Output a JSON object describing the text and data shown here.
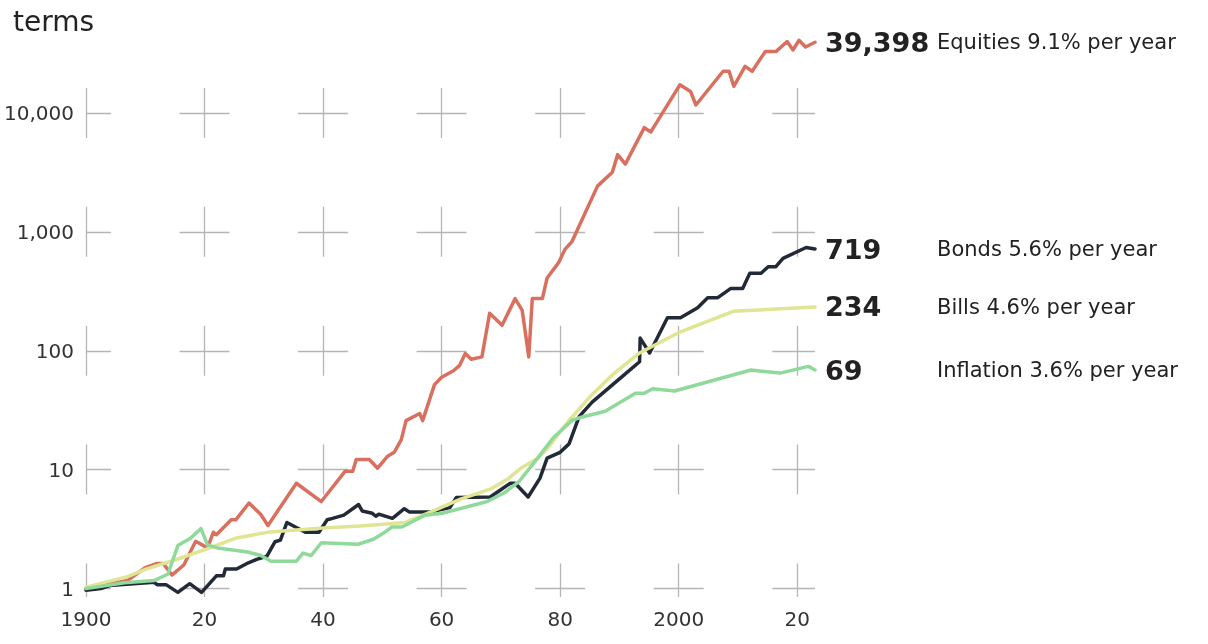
{
  "chart_data": {
    "type": "line",
    "title": "terms",
    "log": "y",
    "grid": true,
    "legend": false,
    "marker": "none",
    "line_style": "solid",
    "xlim": [
      1900,
      2023
    ],
    "xticks": [
      1900,
      {
        "value": 1920,
        "label": "20"
      },
      {
        "value": 1940,
        "label": "40"
      },
      {
        "value": 1960,
        "label": "60"
      },
      {
        "value": 1980,
        "label": "80"
      },
      2000,
      {
        "value": 2020,
        "label": "20"
      }
    ],
    "ylim": [
      0.85,
      50000
    ],
    "yticks": [
      1,
      10,
      100,
      {
        "value": 1000,
        "label": "1,000"
      },
      {
        "value": 10000,
        "label": "10,000"
      }
    ],
    "series": [
      {
        "name": "Equities 9.1% per year",
        "color": "#d9705f",
        "x": [
          1900,
          1907,
          1910,
          1912,
          1913,
          1914.5,
          1916.5,
          1918.5,
          1920.5,
          1921.5,
          1922,
          1924.5,
          1925.3,
          1927.5,
          1929.5,
          1930.7,
          1935.5,
          1939.7,
          1943.7,
          1945,
          1945.6,
          1947.8,
          1949.2,
          1950.9,
          1952,
          1953.2,
          1954,
          1956.3,
          1956.8,
          1958.8,
          1960,
          1962,
          1963,
          1964,
          1965,
          1966.8,
          1968.1,
          1970.2,
          1972.4,
          1973.6,
          1974.7,
          1975.3,
          1977,
          1977.8,
          1979.8,
          1980.8,
          1982,
          1986.3,
          1988.8,
          1989.7,
          1991,
          1994.2,
          1995.3,
          2000.2,
          2002,
          2002.9,
          2007.5,
          2008.5,
          2009.3,
          2011.2,
          2012.4,
          2014.6,
          2016.4,
          2018.3,
          2019.3,
          2020.3,
          2021.4,
          2023
        ],
        "values": [
          1.0,
          1.17,
          1.5,
          1.63,
          1.63,
          1.3,
          1.58,
          2.5,
          2.2,
          2.98,
          2.84,
          3.8,
          3.8,
          5.25,
          4.2,
          3.4,
          7.7,
          5.4,
          9.7,
          9.7,
          12.2,
          12.2,
          10.3,
          13,
          14,
          17.9,
          25.9,
          29.7,
          25.9,
          52,
          60,
          68,
          75,
          95,
          85,
          89,
          207,
          164,
          275,
          219,
          89,
          275,
          275,
          410,
          558,
          714,
          830,
          2430,
          3180,
          4470,
          3720,
          7540,
          6940,
          17300,
          15200,
          11700,
          22500,
          22500,
          16800,
          24700,
          22500,
          32900,
          32900,
          40000,
          34000,
          41000,
          36000,
          39398
        ],
        "value_labels": [
          null,
          null,
          null,
          null,
          null,
          null,
          null,
          null,
          null,
          null,
          null,
          null,
          null,
          null,
          null,
          null,
          null,
          null,
          null,
          null,
          null,
          null,
          null,
          null,
          null,
          null,
          null,
          null,
          null,
          null,
          null,
          null,
          null,
          null,
          null,
          null,
          null,
          null,
          null,
          null,
          null,
          null,
          null,
          null,
          null,
          null,
          null,
          null,
          null,
          null,
          null,
          null,
          null,
          null,
          null,
          null,
          null,
          null,
          null,
          null,
          null,
          null,
          null,
          null,
          null,
          null,
          null,
          "39,398"
        ]
      },
      {
        "name": "Bonds 5.6% per year",
        "color": "#222a38",
        "x": [
          1900,
          1902.5,
          1904,
          1911.5,
          1912,
          1913.5,
          1915.5,
          1917.5,
          1919.5,
          1922,
          1923.2,
          1923.5,
          1925.4,
          1927.4,
          1928.8,
          1930.5,
          1931.9,
          1932.8,
          1933.9,
          1937,
          1939.3,
          1940.7,
          1941.6,
          1943.5,
          1946,
          1946.6,
          1948.3,
          1948.9,
          1949.4,
          1951.7,
          1953.7,
          1954.6,
          1958,
          1961.4,
          1962.5,
          1968.2,
          1971.6,
          1972.4,
          1974.6,
          1976.6,
          1977.8,
          1980,
          1981.5,
          1983.2,
          1985.4,
          1990.5,
          1993.4,
          1993.5,
          1995.1,
          1998.1,
          2000.3,
          2003.2,
          2004.9,
          2006.6,
          2008.8,
          2010.8,
          2012,
          2013.9,
          2015.1,
          2016.4,
          2017.6,
          2021.5,
          2023
        ],
        "values": [
          0.97,
          1.0,
          1.06,
          1.13,
          1.08,
          1.08,
          0.93,
          1.1,
          0.93,
          1.28,
          1.28,
          1.46,
          1.46,
          1.65,
          1.76,
          1.87,
          2.48,
          2.56,
          3.6,
          2.98,
          2.98,
          3.8,
          3.9,
          4.15,
          5.1,
          4.5,
          4.3,
          4.06,
          4.23,
          3.9,
          4.7,
          4.4,
          4.4,
          4.8,
          5.85,
          5.9,
          7.7,
          7.7,
          5.9,
          8.5,
          12.5,
          14,
          16.5,
          28,
          37,
          61,
          81,
          128,
          96,
          190,
          190,
          230,
          280,
          280,
          335,
          335,
          450,
          450,
          510,
          510,
          600,
          740,
          719
        ],
        "value_labels": [
          null,
          null,
          null,
          null,
          null,
          null,
          null,
          null,
          null,
          null,
          null,
          null,
          null,
          null,
          null,
          null,
          null,
          null,
          null,
          null,
          null,
          null,
          null,
          null,
          null,
          null,
          null,
          null,
          null,
          null,
          null,
          null,
          null,
          null,
          null,
          null,
          null,
          null,
          null,
          null,
          null,
          null,
          null,
          null,
          null,
          null,
          null,
          null,
          null,
          null,
          null,
          null,
          null,
          null,
          null,
          null,
          null,
          null,
          null,
          null,
          null,
          null,
          "719"
        ]
      },
      {
        "name": "Bills 4.6% per year",
        "color": "#dfe592",
        "x": [
          1900,
          1907,
          1910,
          1915,
          1920.3,
          1925.4,
          1931,
          1934.9,
          1940.6,
          1946.3,
          1953.9,
          1957.6,
          1963.2,
          1968.3,
          1971.1,
          1973.6,
          1976.2,
          1978.1,
          1981.5,
          1985.4,
          1989.3,
          1993.4,
          2000.2,
          2009.2,
          2023
        ],
        "values": [
          1.03,
          1.26,
          1.45,
          1.74,
          2.15,
          2.67,
          3.0,
          3.1,
          3.25,
          3.37,
          3.6,
          4.3,
          5.65,
          6.9,
          8.3,
          10.5,
          12.4,
          15.6,
          26,
          43,
          66,
          96,
          144,
          215,
          234
        ],
        "value_labels": [
          null,
          null,
          null,
          null,
          null,
          null,
          null,
          null,
          null,
          null,
          null,
          null,
          null,
          null,
          null,
          null,
          null,
          null,
          null,
          null,
          null,
          null,
          null,
          null,
          "234"
        ]
      },
      {
        "name": "Inflation 3.6% per year",
        "color": "#8fd99a",
        "x": [
          1900,
          1906.5,
          1911.5,
          1913.8,
          1915.5,
          1917.7,
          1919.4,
          1920.5,
          1922.2,
          1927.3,
          1929.5,
          1931.2,
          1935.5,
          1936.6,
          1938,
          1939.7,
          1945.9,
          1948.5,
          1950.2,
          1951.6,
          1953.3,
          1957.2,
          1960.1,
          1967.7,
          1970.8,
          1973.1,
          1975.9,
          1978.8,
          1982,
          1983.4,
          1987.6,
          1992.7,
          1994.2,
          1995.6,
          1999.3,
          2012.2,
          2017.1,
          2021.9,
          2023
        ],
        "values": [
          1.0,
          1.12,
          1.17,
          1.32,
          2.3,
          2.67,
          3.2,
          2.33,
          2.2,
          2.03,
          1.9,
          1.7,
          1.7,
          1.99,
          1.9,
          2.43,
          2.36,
          2.6,
          2.93,
          3.3,
          3.3,
          4.15,
          4.3,
          5.4,
          6.5,
          8,
          12,
          18.5,
          26,
          27.5,
          31,
          44,
          44,
          48,
          46,
          69,
          65,
          74,
          69
        ],
        "value_labels": [
          null,
          null,
          null,
          null,
          null,
          null,
          null,
          null,
          null,
          null,
          null,
          null,
          null,
          null,
          null,
          null,
          null,
          null,
          null,
          null,
          null,
          null,
          null,
          null,
          null,
          null,
          null,
          null,
          null,
          null,
          null,
          null,
          null,
          null,
          null,
          null,
          null,
          null,
          "69"
        ]
      }
    ]
  }
}
